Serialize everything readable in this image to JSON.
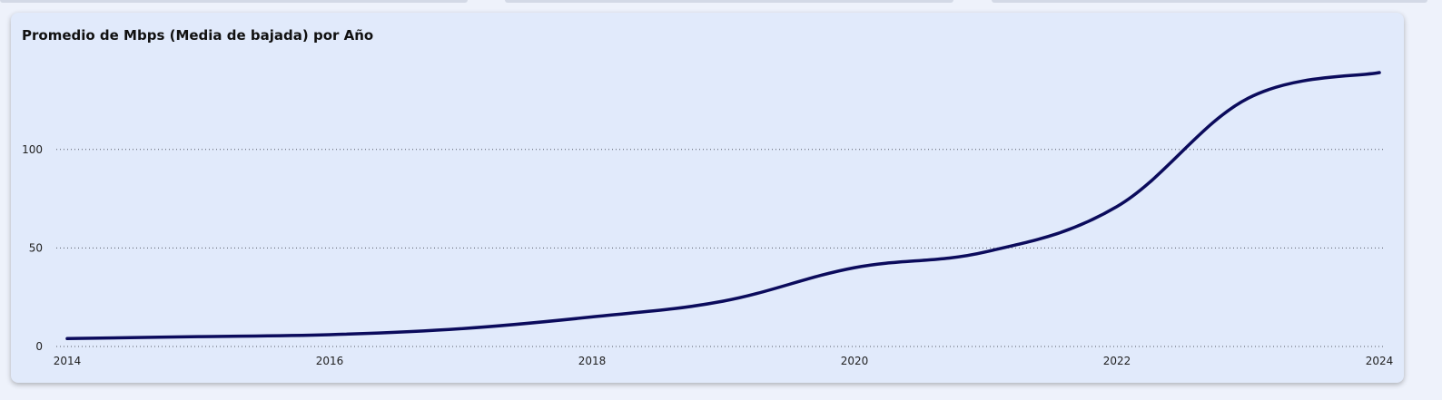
{
  "chart_data": {
    "type": "line",
    "title": "Promedio de Mbps (Media de bajada) por Año",
    "xlabel": "",
    "ylabel": "",
    "x": [
      2014,
      2015,
      2016,
      2017,
      2018,
      2019,
      2020,
      2021,
      2022,
      2023,
      2024
    ],
    "series": [
      {
        "values": [
          4,
          5,
          6,
          9,
          15,
          23,
          40,
          48,
          71,
          126,
          139
        ]
      }
    ],
    "x_ticks": [
      "2014",
      "2016",
      "2018",
      "2020",
      "2022",
      "2024"
    ],
    "y_ticks": [
      "0",
      "50",
      "100"
    ],
    "xlim": [
      2014,
      2024
    ],
    "ylim": [
      0,
      145
    ],
    "grid": "horizontal-dotted",
    "legend": "none",
    "colors": {
      "line": "#0b0b5c",
      "card_background": "#e1eafb",
      "page_background": "#eef2fb"
    }
  }
}
